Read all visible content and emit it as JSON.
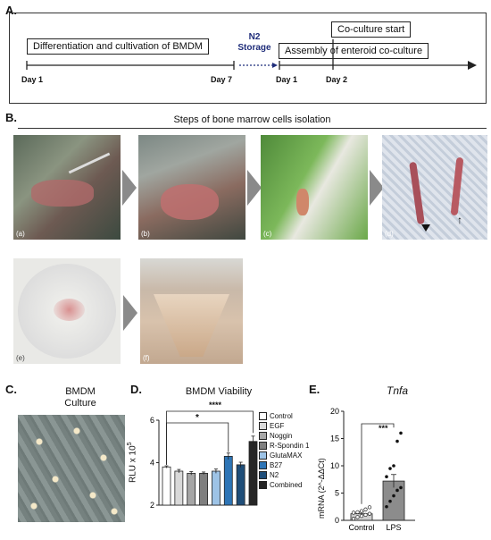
{
  "panelA": {
    "letter": "A.",
    "box_diff": "Differentiation and cultivation of BMDM",
    "storage_line1": "N2",
    "storage_line2": "Storage",
    "box_coculture_start": "Co-culture start",
    "box_assembly": "Assembly of enteroid co-culture",
    "day1_left": "Day 1",
    "day7": "Day 7",
    "day1_right": "Day 1",
    "day2": "Day 2",
    "storage_color": "#1f2d7a"
  },
  "panelB": {
    "letter": "B.",
    "title": "Steps of bone marrow cells isolation",
    "sublabels": [
      "(a)",
      "(b)",
      "(c)",
      "(d)",
      "(e)",
      "(f)"
    ],
    "arrow_markers": [
      "triangle-marker-icon",
      "up-arrow-icon"
    ]
  },
  "panelC": {
    "letter": "C.",
    "title_line1": "BMDM",
    "title_line2": "Culture"
  },
  "panelD": {
    "letter": "D.",
    "title": "BMDM Viability",
    "ylabel": "RLU x 10",
    "ylabel_sup": "5",
    "sig_long": "****",
    "sig_short": "*",
    "chart_data": {
      "type": "bar",
      "title": "BMDM Viability",
      "ylabel": "RLU x 10^5",
      "ylim": [
        0,
        6
      ],
      "yticks": [
        "2",
        "4",
        "6"
      ],
      "categories": [
        "Control",
        "EGF",
        "Noggin",
        "R-Spondin 1",
        "GlutaMAX",
        "B27",
        "N2",
        "Combined"
      ],
      "values": [
        3.8,
        3.6,
        3.5,
        3.5,
        3.6,
        4.3,
        3.9,
        5.0
      ],
      "errors": [
        0.05,
        0.08,
        0.08,
        0.06,
        0.1,
        0.15,
        0.12,
        0.25
      ],
      "colors": [
        "#ffffff",
        "#d9d9d9",
        "#a6a6a6",
        "#7f7f7f",
        "#9dc3e6",
        "#2e75b6",
        "#1f4e79",
        "#262626"
      ],
      "legend_position": "right",
      "significance": [
        {
          "from": "Control",
          "to": "Combined",
          "label": "****"
        },
        {
          "from": "Control",
          "to": "B27",
          "label": "*"
        }
      ]
    }
  },
  "panelE": {
    "letter": "E.",
    "title": "Tnfa",
    "ylabel": "mRNA (2^-ΔΔCt)",
    "sig": "***",
    "chart_data": {
      "type": "bar",
      "title": "Tnfa",
      "ylabel": "mRNA (2^-ΔΔCt)",
      "ylim": [
        0,
        20
      ],
      "yticks": [
        "0",
        "5",
        "10",
        "15",
        "20"
      ],
      "categories": [
        "Control",
        "LPS"
      ],
      "values": [
        1.2,
        7.2
      ],
      "errors": [
        0.3,
        1.2
      ],
      "points_control": [
        0.3,
        0.6,
        0.8,
        1.0,
        1.2,
        1.4,
        1.5,
        1.7,
        2.0,
        2.4
      ],
      "points_lps": [
        2.5,
        3.5,
        4.5,
        5.5,
        6.0,
        8.0,
        9.5,
        10.0,
        14.5,
        16.0
      ],
      "significance": [
        {
          "from": "Control",
          "to": "LPS",
          "label": "***"
        }
      ]
    }
  }
}
